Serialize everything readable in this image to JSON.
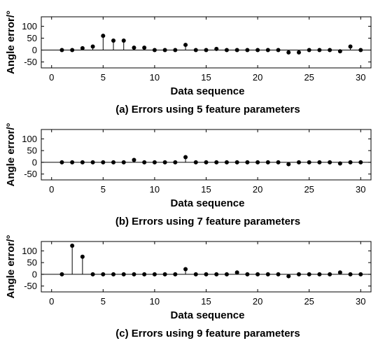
{
  "chart_data": [
    {
      "type": "stem",
      "caption": "(a) Errors using 5 feature parameters",
      "xlabel": "Data sequence",
      "ylabel": "Angle error/°",
      "xlim": [
        -1,
        31
      ],
      "ylim": [
        -75,
        140
      ],
      "xticks": [
        0,
        5,
        10,
        15,
        20,
        25,
        30
      ],
      "yticks": [
        -50,
        0,
        50,
        100
      ],
      "x": [
        1,
        2,
        3,
        4,
        5,
        6,
        7,
        8,
        9,
        10,
        11,
        12,
        13,
        14,
        15,
        16,
        17,
        18,
        19,
        20,
        21,
        22,
        23,
        24,
        25,
        26,
        27,
        28,
        29,
        30
      ],
      "y": [
        0,
        0,
        8,
        15,
        60,
        40,
        40,
        10,
        10,
        0,
        0,
        0,
        22,
        0,
        0,
        5,
        0,
        0,
        0,
        0,
        0,
        0,
        -10,
        -10,
        0,
        0,
        0,
        -5,
        15,
        0
      ]
    },
    {
      "type": "stem",
      "caption": "(b) Errors using 7 feature parameters",
      "xlabel": "Data sequence",
      "ylabel": "Angle error/°",
      "xlim": [
        -1,
        31
      ],
      "ylim": [
        -75,
        140
      ],
      "xticks": [
        0,
        5,
        10,
        15,
        20,
        25,
        30
      ],
      "yticks": [
        -50,
        0,
        50,
        100
      ],
      "x": [
        1,
        2,
        3,
        4,
        5,
        6,
        7,
        8,
        9,
        10,
        11,
        12,
        13,
        14,
        15,
        16,
        17,
        18,
        19,
        20,
        21,
        22,
        23,
        24,
        25,
        26,
        27,
        28,
        29,
        30
      ],
      "y": [
        0,
        0,
        0,
        0,
        0,
        0,
        0,
        10,
        0,
        0,
        0,
        0,
        22,
        0,
        0,
        0,
        0,
        0,
        0,
        0,
        0,
        0,
        -8,
        0,
        0,
        0,
        0,
        -5,
        0,
        0
      ]
    },
    {
      "type": "stem",
      "caption": "(c) Errors using 9 feature parameters",
      "xlabel": "Data sequence",
      "ylabel": "Angle error/°",
      "xlim": [
        -1,
        31
      ],
      "ylim": [
        -75,
        140
      ],
      "xticks": [
        0,
        5,
        10,
        15,
        20,
        25,
        30
      ],
      "yticks": [
        -50,
        0,
        50,
        100
      ],
      "x": [
        1,
        2,
        3,
        4,
        5,
        6,
        7,
        8,
        9,
        10,
        11,
        12,
        13,
        14,
        15,
        16,
        17,
        18,
        19,
        20,
        21,
        22,
        23,
        24,
        25,
        26,
        27,
        28,
        29,
        30
      ],
      "y": [
        0,
        122,
        75,
        0,
        0,
        0,
        0,
        0,
        0,
        0,
        0,
        0,
        22,
        0,
        0,
        0,
        0,
        8,
        0,
        0,
        0,
        0,
        -8,
        0,
        0,
        0,
        0,
        8,
        0,
        0
      ]
    }
  ]
}
